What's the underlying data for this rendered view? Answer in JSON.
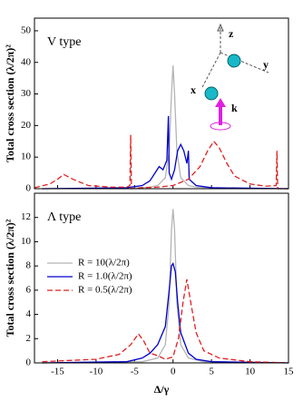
{
  "chart_data": [
    {
      "type": "line",
      "annotation": "V type",
      "ylabel": "Total cross section (λ/2π)²",
      "xlim": [
        -18,
        15
      ],
      "ylim": [
        0,
        54
      ],
      "yticks": [
        0,
        10,
        20,
        30,
        40,
        50
      ],
      "inset_labels": [
        "z",
        "y",
        "x",
        "k"
      ],
      "series": [
        {
          "color": "#b4b4b4",
          "dash": false,
          "x": [
            -17,
            -5,
            -3,
            -2,
            -1,
            -0.5,
            -0.2,
            0,
            0.2,
            0.5,
            1,
            2,
            3,
            5,
            15
          ],
          "values": [
            0,
            0.2,
            0.5,
            1,
            3.5,
            12,
            30,
            39,
            30,
            12,
            3.5,
            1,
            0.5,
            0.2,
            0
          ]
        },
        {
          "color": "#0000cc",
          "dash": false,
          "x": [
            -17,
            -6,
            -4,
            -3,
            -2.2,
            -1.8,
            -1.3,
            -0.8,
            -0.6,
            -0.5,
            -0.2,
            0.2,
            0.6,
            1,
            1.4,
            1.8,
            2,
            2.1,
            3,
            5,
            15
          ],
          "values": [
            0,
            0.3,
            1,
            2.5,
            5.5,
            7,
            6,
            9,
            23,
            5,
            3,
            6,
            12,
            14,
            12,
            8,
            12,
            3,
            1,
            0.3,
            0
          ]
        },
        {
          "color": "#e02020",
          "dash": true,
          "x": [
            -18,
            -16,
            -15,
            -14.2,
            -13,
            -11,
            -8,
            -6,
            -5.6,
            -5.5,
            -5.4,
            -4,
            -2,
            0,
            2,
            3.5,
            4.5,
            5.3,
            6,
            7,
            8,
            10,
            12,
            13.4,
            13.5,
            13.6,
            15
          ],
          "values": [
            0.3,
            1.5,
            3,
            4.5,
            3,
            1,
            0.5,
            0.5,
            1,
            17,
            0,
            0.3,
            0.5,
            1,
            3,
            7,
            12,
            15,
            13,
            8,
            4,
            1.5,
            0.8,
            1,
            12,
            0,
            0
          ]
        }
      ]
    },
    {
      "type": "line",
      "annotation": "Λ type",
      "ylabel": "Total cross section (λ/2π)²",
      "xlabel": "Δ/γ",
      "xlim": [
        -18,
        15
      ],
      "ylim": [
        0,
        14
      ],
      "yticks": [
        0,
        2,
        4,
        6,
        8,
        10,
        12
      ],
      "xticks": [
        -15,
        -10,
        -5,
        0,
        5,
        10,
        15
      ],
      "series": [
        {
          "name": "R = 10(λ/2π)",
          "color": "#b4b4b4",
          "dash": false,
          "x": [
            -17,
            -4,
            -2,
            -1,
            -0.5,
            -0.2,
            0,
            0.2,
            0.5,
            1,
            2,
            4,
            15
          ],
          "values": [
            0,
            0.1,
            0.4,
            1.5,
            5,
            11,
            12.7,
            11,
            5,
            1.5,
            0.4,
            0.1,
            0
          ]
        },
        {
          "name": "R = 1.0(λ/2π)",
          "color": "#0000cc",
          "dash": false,
          "x": [
            -17,
            -6,
            -4,
            -3,
            -2,
            -1,
            -0.5,
            -0.2,
            0,
            0.3,
            0.6,
            1,
            2,
            3,
            5,
            15
          ],
          "values": [
            0,
            0.1,
            0.4,
            0.8,
            1.5,
            3,
            6,
            8,
            8.2,
            7.5,
            5,
            2.5,
            0.8,
            0.3,
            0.1,
            0
          ]
        },
        {
          "name": "R = 0.5(λ/2π)",
          "color": "#e02020",
          "dash": true,
          "x": [
            -17,
            -10,
            -7,
            -5.5,
            -4.5,
            -3.8,
            -3,
            -2,
            -1,
            0,
            0.7,
            1.3,
            1.8,
            2.3,
            3,
            4,
            6,
            10,
            15
          ],
          "values": [
            0.1,
            0.3,
            0.7,
            1.5,
            2.4,
            1.8,
            0.8,
            0.6,
            0.3,
            0.5,
            2,
            5,
            6.9,
            5,
            2.5,
            1,
            0.4,
            0.1,
            0
          ]
        }
      ]
    }
  ]
}
